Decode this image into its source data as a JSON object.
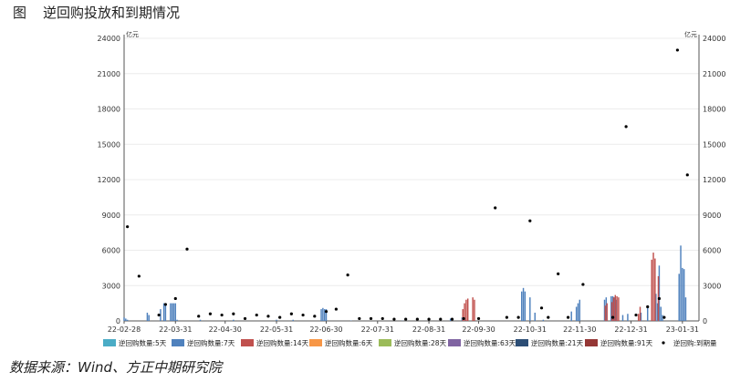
{
  "caption": {
    "fig_label": "图",
    "title": "逆回购投放和到期情况"
  },
  "source": "数据来源：Wind、方正中期研究院",
  "chart_data": {
    "type": "bar",
    "left_axis": {
      "unit": "亿元",
      "ticks": [
        0,
        3000,
        6000,
        9000,
        12000,
        15000,
        18000,
        21000,
        24000
      ],
      "ylim": [
        0,
        24000
      ]
    },
    "right_axis": {
      "unit": "亿元",
      "ticks": [
        0,
        3000,
        6000,
        9000,
        12000,
        15000,
        18000,
        21000,
        24000
      ],
      "ylim": [
        0,
        24000
      ]
    },
    "x_tick_labels": [
      "22-02-28",
      "22-03-31",
      "22-04-30",
      "22-05-31",
      "22-06-30",
      "22-07-31",
      "22-08-31",
      "22-09-30",
      "22-10-31",
      "22-11-30",
      "22-12-31",
      "23-01-31"
    ],
    "x_range": [
      "2022-02-28",
      "2023-02-10"
    ],
    "legend": [
      "逆回购数量:5天",
      "逆回购数量:7天",
      "逆回购数量:14天",
      "逆回购数量:6天",
      "逆回购数量:28天",
      "逆回购数量:63天",
      "逆回购数量:21天",
      "逆回购数量:91天",
      "逆回购:到期量"
    ],
    "colors": {
      "5d": "#4bacc6",
      "7d": "#4f81bd",
      "14d": "#c0504d",
      "6d": "#f79646",
      "28d": "#9bbb59",
      "63d": "#8064a2",
      "21d": "#2c4d75",
      "91d": "#953735",
      "maturity": "#000000"
    },
    "grid": true,
    "legend_position": "bottom",
    "series": [
      {
        "name": "逆回购数量:7天",
        "type": "bar",
        "points": [
          {
            "x": "2022-02-28",
            "y": 300
          },
          {
            "x": "2022-03-01",
            "y": 200
          },
          {
            "x": "2022-03-02",
            "y": 100
          },
          {
            "x": "2022-03-14",
            "y": 700
          },
          {
            "x": "2022-03-15",
            "y": 500
          },
          {
            "x": "2022-03-22",
            "y": 1000
          },
          {
            "x": "2022-03-24",
            "y": 1500
          },
          {
            "x": "2022-03-25",
            "y": 1500
          },
          {
            "x": "2022-03-28",
            "y": 1500
          },
          {
            "x": "2022-03-29",
            "y": 1500
          },
          {
            "x": "2022-03-30",
            "y": 1500
          },
          {
            "x": "2022-03-31",
            "y": 1500
          },
          {
            "x": "2022-04-01",
            "y": 100
          },
          {
            "x": "2022-04-15",
            "y": 100
          },
          {
            "x": "2022-05-05",
            "y": 100
          },
          {
            "x": "2022-05-31",
            "y": 100
          },
          {
            "x": "2022-06-10",
            "y": 100
          },
          {
            "x": "2022-06-27",
            "y": 1000
          },
          {
            "x": "2022-06-28",
            "y": 1100
          },
          {
            "x": "2022-06-29",
            "y": 1000
          },
          {
            "x": "2022-06-30",
            "y": 1000
          },
          {
            "x": "2022-07-15",
            "y": 30
          },
          {
            "x": "2022-08-15",
            "y": 20
          },
          {
            "x": "2022-09-13",
            "y": 200
          },
          {
            "x": "2022-09-20",
            "y": 300
          },
          {
            "x": "2022-09-22",
            "y": 100
          },
          {
            "x": "2022-10-26",
            "y": 2500
          },
          {
            "x": "2022-10-27",
            "y": 2800
          },
          {
            "x": "2022-10-28",
            "y": 2500
          },
          {
            "x": "2022-10-31",
            "y": 2000
          },
          {
            "x": "2022-11-03",
            "y": 700
          },
          {
            "x": "2022-11-08",
            "y": 100
          },
          {
            "x": "2022-11-25",
            "y": 800
          },
          {
            "x": "2022-11-28",
            "y": 1200
          },
          {
            "x": "2022-11-29",
            "y": 1500
          },
          {
            "x": "2022-11-30",
            "y": 1800
          },
          {
            "x": "2022-12-15",
            "y": 1800
          },
          {
            "x": "2022-12-16",
            "y": 2000
          },
          {
            "x": "2022-12-19",
            "y": 2100
          },
          {
            "x": "2022-12-20",
            "y": 2100
          },
          {
            "x": "2022-12-21",
            "y": 2000
          },
          {
            "x": "2022-12-22",
            "y": 1800
          },
          {
            "x": "2022-12-26",
            "y": 500
          },
          {
            "x": "2022-12-29",
            "y": 600
          },
          {
            "x": "2023-01-06",
            "y": 700
          },
          {
            "x": "2023-01-10",
            "y": 1200
          },
          {
            "x": "2023-01-15",
            "y": 2300
          },
          {
            "x": "2023-01-16",
            "y": 1500
          },
          {
            "x": "2023-01-17",
            "y": 4700
          },
          {
            "x": "2023-01-18",
            "y": 1200
          },
          {
            "x": "2023-01-19",
            "y": 500
          },
          {
            "x": "2023-01-29",
            "y": 4000
          },
          {
            "x": "2023-01-30",
            "y": 6400
          },
          {
            "x": "2023-01-31",
            "y": 4500
          },
          {
            "x": "2023-02-01",
            "y": 4400
          },
          {
            "x": "2023-02-02",
            "y": 2000
          }
        ]
      },
      {
        "name": "逆回购数量:14天",
        "type": "bar",
        "points": [
          {
            "x": "2022-09-20",
            "y": 1000
          },
          {
            "x": "2022-09-21",
            "y": 1500
          },
          {
            "x": "2022-09-22",
            "y": 1800
          },
          {
            "x": "2022-09-23",
            "y": 1900
          },
          {
            "x": "2022-09-26",
            "y": 2000
          },
          {
            "x": "2022-09-27",
            "y": 1800
          },
          {
            "x": "2022-12-15",
            "y": 1300
          },
          {
            "x": "2022-12-16",
            "y": 1500
          },
          {
            "x": "2022-12-19",
            "y": 1600
          },
          {
            "x": "2022-12-20",
            "y": 2000
          },
          {
            "x": "2022-12-21",
            "y": 2200
          },
          {
            "x": "2022-12-22",
            "y": 2100
          },
          {
            "x": "2022-12-23",
            "y": 2000
          },
          {
            "x": "2023-01-04",
            "y": 600
          },
          {
            "x": "2023-01-05",
            "y": 1200
          },
          {
            "x": "2023-01-12",
            "y": 5200
          },
          {
            "x": "2023-01-13",
            "y": 5800
          },
          {
            "x": "2023-01-14",
            "y": 5300
          },
          {
            "x": "2023-01-16",
            "y": 3800
          }
        ]
      },
      {
        "name": "逆回购:到期量",
        "type": "dot",
        "points": [
          {
            "x": "2022-03-02",
            "y": 8000
          },
          {
            "x": "2022-03-09",
            "y": 3800
          },
          {
            "x": "2022-03-21",
            "y": 500
          },
          {
            "x": "2022-03-25",
            "y": 1400
          },
          {
            "x": "2022-03-31",
            "y": 1900
          },
          {
            "x": "2022-04-07",
            "y": 6100
          },
          {
            "x": "2022-04-14",
            "y": 400
          },
          {
            "x": "2022-04-21",
            "y": 600
          },
          {
            "x": "2022-04-28",
            "y": 500
          },
          {
            "x": "2022-05-05",
            "y": 600
          },
          {
            "x": "2022-05-12",
            "y": 200
          },
          {
            "x": "2022-05-19",
            "y": 500
          },
          {
            "x": "2022-05-26",
            "y": 400
          },
          {
            "x": "2022-06-02",
            "y": 300
          },
          {
            "x": "2022-06-09",
            "y": 600
          },
          {
            "x": "2022-06-16",
            "y": 500
          },
          {
            "x": "2022-06-23",
            "y": 400
          },
          {
            "x": "2022-06-30",
            "y": 800
          },
          {
            "x": "2022-07-06",
            "y": 1000
          },
          {
            "x": "2022-07-13",
            "y": 3900
          },
          {
            "x": "2022-07-20",
            "y": 200
          },
          {
            "x": "2022-07-27",
            "y": 200
          },
          {
            "x": "2022-08-03",
            "y": 200
          },
          {
            "x": "2022-08-10",
            "y": 150
          },
          {
            "x": "2022-08-17",
            "y": 150
          },
          {
            "x": "2022-08-24",
            "y": 150
          },
          {
            "x": "2022-08-31",
            "y": 150
          },
          {
            "x": "2022-09-07",
            "y": 150
          },
          {
            "x": "2022-09-14",
            "y": 150
          },
          {
            "x": "2022-09-21",
            "y": 200
          },
          {
            "x": "2022-09-30",
            "y": 200
          },
          {
            "x": "2022-10-10",
            "y": 9600
          },
          {
            "x": "2022-10-17",
            "y": 300
          },
          {
            "x": "2022-10-24",
            "y": 300
          },
          {
            "x": "2022-10-31",
            "y": 8500
          },
          {
            "x": "2022-11-07",
            "y": 1100
          },
          {
            "x": "2022-11-11",
            "y": 300
          },
          {
            "x": "2022-11-17",
            "y": 4000
          },
          {
            "x": "2022-11-23",
            "y": 300
          },
          {
            "x": "2022-12-02",
            "y": 3100
          },
          {
            "x": "2022-12-20",
            "y": 300
          },
          {
            "x": "2022-12-28",
            "y": 16500
          },
          {
            "x": "2023-01-03",
            "y": 500
          },
          {
            "x": "2023-01-10",
            "y": 1200
          },
          {
            "x": "2023-01-17",
            "y": 1900
          },
          {
            "x": "2023-01-20",
            "y": 300
          },
          {
            "x": "2023-01-28",
            "y": 23000
          },
          {
            "x": "2023-02-03",
            "y": 12400
          }
        ]
      }
    ]
  }
}
